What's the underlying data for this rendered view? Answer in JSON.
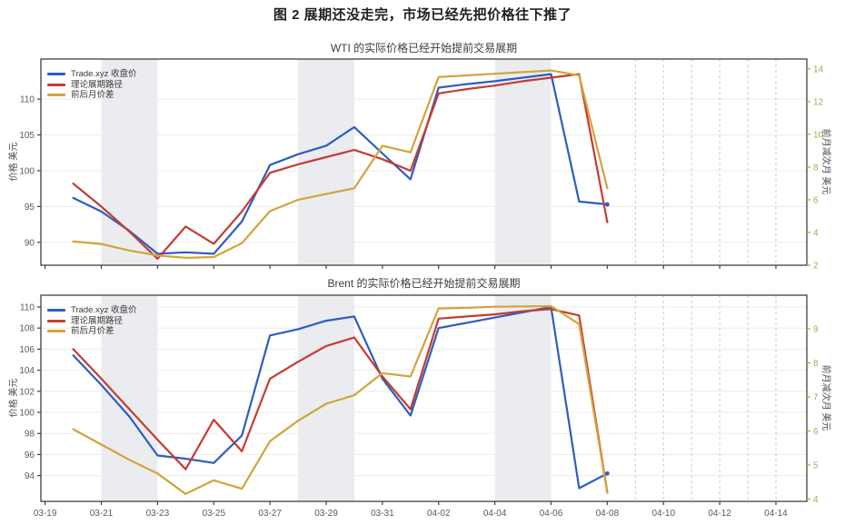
{
  "figure_title": "图 2  展期还没走完，市场已经先把价格往下推了",
  "colors": {
    "close": "#2d5dc0",
    "theory": "#c63b31",
    "spread": "#d2a43b",
    "weekend_band": "#eaecf0",
    "grid": "#ebebeb",
    "dashed_grid": "#c9c9c9",
    "spine": "#404040",
    "tick_text": "#5a5a5a",
    "right_tick_text": "#b5a152",
    "title_text": "#1f1f1f",
    "chart_title_text": "#3d3d3d"
  },
  "x_axis": {
    "tick_labels": [
      "03-19",
      "03-21",
      "03-23",
      "03-25",
      "03-27",
      "03-29",
      "03-31",
      "04-02",
      "04-04",
      "04-06",
      "04-08",
      "04-10",
      "04-12",
      "04-14"
    ],
    "tick_day_offsets": [
      0,
      2,
      4,
      6,
      8,
      10,
      12,
      14,
      16,
      18,
      20,
      22,
      24,
      26
    ],
    "domain_days": [
      -0.15,
      27.1
    ],
    "weekend_bands": [
      [
        2,
        4
      ],
      [
        9,
        11
      ],
      [
        16,
        18
      ]
    ],
    "future_dashed_days": [
      21,
      22,
      23,
      24,
      25,
      26
    ]
  },
  "chart_data": [
    {
      "type": "line",
      "title": "WTI 的实际价格已经开始提前交易展期",
      "grid": true,
      "legend_position": "upper left",
      "ylabel_left": "价格 美元",
      "ylabel_right": "前月减次月 美元",
      "ylim_left": [
        86.8,
        115.6
      ],
      "ylim_right": [
        2.0,
        14.6
      ],
      "yticks_left": [
        90,
        95,
        100,
        105,
        110
      ],
      "yticks_right": [
        2,
        4,
        6,
        8,
        10,
        12,
        14
      ],
      "dates": [
        "03-20",
        "03-21",
        "03-22",
        "03-23",
        "03-24",
        "03-25",
        "03-26",
        "03-27",
        "03-28",
        "03-29",
        "03-30",
        "03-31",
        "04-01",
        "04-02",
        "04-03",
        "04-04",
        "04-05",
        "04-06",
        "04-07",
        "04-08"
      ],
      "day_offsets": [
        1,
        2,
        3,
        4,
        5,
        6,
        7,
        8,
        9,
        10,
        11,
        12,
        13,
        14,
        15,
        16,
        17,
        18,
        19,
        20
      ],
      "series": [
        {
          "key": "close",
          "name": "Trade.xyz 收盘价",
          "axis": "left",
          "color_key": "close",
          "end_marker": true,
          "values": [
            96.2,
            94.3,
            91.6,
            88.4,
            88.6,
            88.4,
            92.9,
            100.8,
            102.3,
            103.5,
            106.1,
            102.4,
            98.8,
            111.6,
            112.1,
            112.5,
            113.0,
            113.5,
            95.7,
            95.3
          ]
        },
        {
          "key": "theory",
          "name": "理论展期路径",
          "axis": "left",
          "color_key": "theory",
          "end_marker": false,
          "values": [
            98.2,
            95.0,
            91.5,
            87.7,
            92.2,
            89.8,
            94.3,
            99.7,
            100.9,
            101.9,
            102.9,
            101.6,
            100.0,
            110.8,
            111.4,
            111.9,
            112.5,
            113.0,
            113.5,
            92.8
          ]
        },
        {
          "key": "spread",
          "name": "前后月价差",
          "axis": "right",
          "color_key": "spread",
          "end_marker": false,
          "values": [
            3.45,
            3.3,
            2.9,
            2.6,
            2.45,
            2.5,
            3.35,
            5.3,
            6.0,
            6.35,
            6.7,
            9.3,
            8.9,
            13.5,
            13.6,
            13.7,
            13.8,
            13.9,
            13.6,
            6.7
          ]
        }
      ]
    },
    {
      "type": "line",
      "title": "Brent 的实际价格已经开始提前交易展期",
      "grid": true,
      "legend_position": "upper left",
      "ylabel_left": "价格 美元",
      "ylabel_right": "前月减次月 美元",
      "ylim_left": [
        91.55,
        111.12
      ],
      "ylim_right": [
        3.93,
        9.99
      ],
      "yticks_left": [
        94,
        96,
        98,
        100,
        102,
        104,
        106,
        108,
        110
      ],
      "yticks_right": [
        4,
        5,
        6,
        7,
        8,
        9
      ],
      "dates": [
        "03-20",
        "03-21",
        "03-22",
        "03-23",
        "03-24",
        "03-25",
        "03-26",
        "03-27",
        "03-28",
        "03-29",
        "03-30",
        "03-31",
        "04-01",
        "04-02",
        "04-03",
        "04-04",
        "04-05",
        "04-06",
        "04-07",
        "04-08"
      ],
      "day_offsets": [
        1,
        2,
        3,
        4,
        5,
        6,
        7,
        8,
        9,
        10,
        11,
        12,
        13,
        14,
        15,
        16,
        17,
        18,
        19,
        20
      ],
      "series": [
        {
          "key": "close",
          "name": "Trade.xyz 收盘价",
          "axis": "left",
          "color_key": "close",
          "end_marker": true,
          "values": [
            105.4,
            102.6,
            99.6,
            95.9,
            95.6,
            95.2,
            97.8,
            107.3,
            107.9,
            108.7,
            109.1,
            103.2,
            99.7,
            108.0,
            108.5,
            109.0,
            109.5,
            110.0,
            92.8,
            94.2
          ]
        },
        {
          "key": "theory",
          "name": "理论展期路径",
          "axis": "left",
          "color_key": "theory",
          "end_marker": false,
          "values": [
            106.0,
            103.2,
            100.3,
            97.4,
            94.6,
            99.3,
            96.3,
            103.2,
            104.8,
            106.3,
            107.1,
            103.4,
            100.3,
            108.9,
            109.1,
            109.3,
            109.6,
            109.8,
            109.2,
            92.4
          ]
        },
        {
          "key": "spread",
          "name": "前后月价差",
          "axis": "right",
          "color_key": "spread",
          "end_marker": false,
          "values": [
            6.05,
            5.6,
            5.15,
            4.75,
            4.15,
            4.55,
            4.3,
            5.7,
            6.3,
            6.8,
            7.05,
            7.7,
            7.6,
            9.6,
            9.62,
            9.65,
            9.66,
            9.67,
            9.14,
            4.18
          ]
        }
      ]
    }
  ]
}
